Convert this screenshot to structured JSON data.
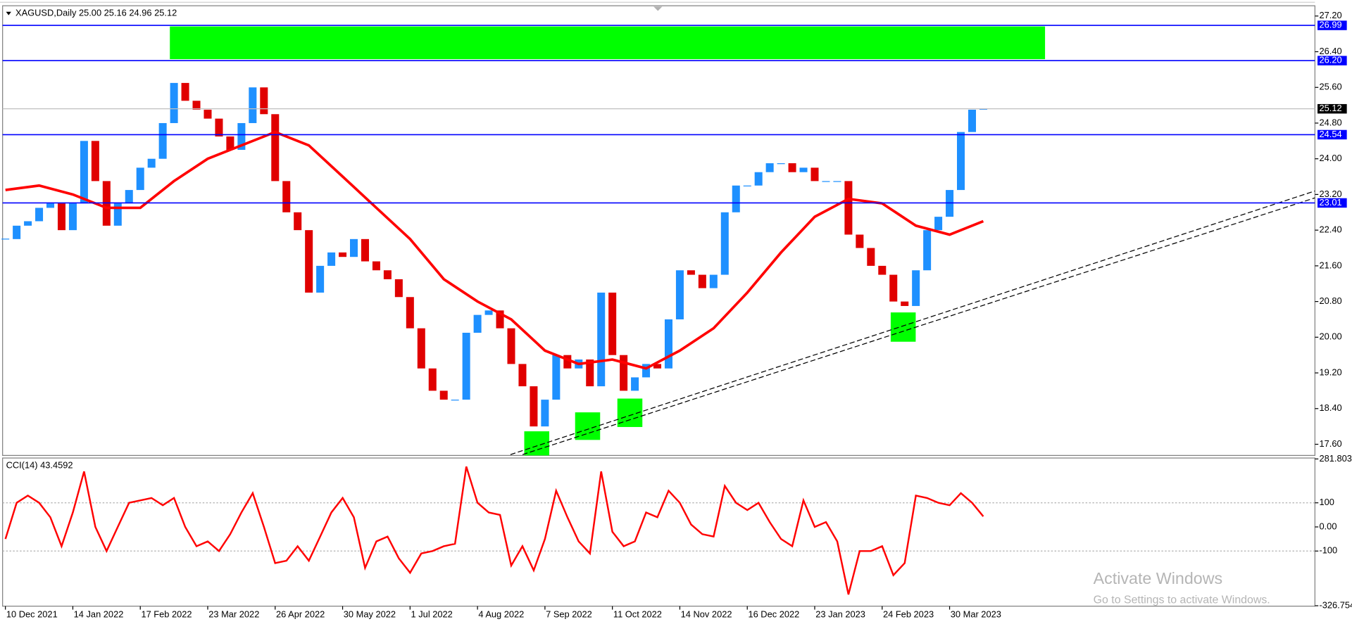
{
  "chart_data": [
    {
      "type": "candlestick",
      "title": "XAGUSD,Daily  25.00 25.16 24.96 25.12",
      "xlim": [
        -1,
        466
      ],
      "ylim": [
        17.35,
        27.43
      ],
      "yticks": [
        {
          "value": 27.2,
          "label": "27.20"
        },
        {
          "value": 26.4,
          "label": "26.40"
        },
        {
          "value": 25.6,
          "label": "25.60"
        },
        {
          "value": 24.8,
          "label": "24.80"
        },
        {
          "value": 24,
          "label": "24.00"
        },
        {
          "value": 23.2,
          "label": "23.20"
        },
        {
          "value": 22.4,
          "label": "22.40"
        },
        {
          "value": 21.6,
          "label": "21.60"
        },
        {
          "value": 20.8,
          "label": "20.80"
        },
        {
          "value": 20,
          "label": "20.00"
        },
        {
          "value": 19.2,
          "label": "19.20"
        },
        {
          "value": 18.4,
          "label": "18.40"
        },
        {
          "value": 17.6,
          "label": "17.60"
        }
      ],
      "levels": [
        26.99,
        {
          "value": 26.2,
          "label": "26.20"
        },
        24.54,
        23.01
      ],
      "level_color": "#0000ff",
      "current_price": 25.12,
      "current_color": "#c0c0c0",
      "series": [
        {
          "color_up": "#1e90ff",
          "color_down": "#e00000",
          "x": [
            0,
            4,
            8,
            12,
            16,
            20,
            24,
            28,
            32,
            36,
            40,
            44,
            48,
            52,
            56,
            60,
            64,
            68,
            72,
            76,
            80,
            84,
            88,
            92,
            96,
            100,
            104,
            108,
            112,
            116,
            120,
            124,
            128,
            132,
            136,
            140,
            144,
            148,
            152,
            156,
            160,
            164,
            168,
            172,
            176,
            180,
            184,
            188,
            192,
            196,
            200,
            204,
            208,
            212,
            216,
            220,
            224,
            228,
            232,
            236,
            240,
            244,
            248,
            252,
            256,
            260,
            264,
            268,
            272,
            276,
            280,
            284,
            288,
            292,
            296,
            300,
            304,
            308,
            312,
            316,
            320,
            324,
            328,
            332,
            336,
            340,
            344,
            348
          ],
          "values": [
            22.2,
            22.5,
            22.6,
            22.9,
            23.0,
            22.4,
            23.0,
            24.4,
            23.5,
            22.5,
            23.0,
            23.3,
            23.8,
            24.0,
            24.8,
            25.7,
            25.3,
            25.1,
            24.9,
            24.5,
            24.2,
            24.8,
            25.6,
            25.0,
            23.5,
            22.8,
            22.4,
            21.0,
            21.6,
            21.9,
            21.8,
            22.2,
            21.7,
            21.5,
            21.3,
            20.9,
            20.2,
            19.3,
            18.8,
            18.6,
            18.6,
            20.1,
            20.5,
            20.6,
            20.2,
            19.4,
            18.9,
            18.0,
            18.6,
            19.6,
            19.3,
            19.5,
            18.9,
            21.0,
            19.6,
            18.8,
            19.1,
            19.4,
            19.3,
            20.4,
            21.5,
            21.4,
            21.1,
            21.4,
            22.8,
            23.4,
            23.4,
            23.7,
            23.9,
            23.9,
            23.7,
            23.8,
            23.5,
            23.5,
            23.5,
            22.3,
            22.0,
            21.6,
            21.4,
            20.8,
            20.7,
            21.5,
            22.4,
            22.7,
            23.3,
            24.6,
            25.1,
            25.12
          ]
        },
        {
          "color": "#ff0000",
          "x": [
            0,
            12,
            24,
            36,
            48,
            60,
            72,
            84,
            96,
            108,
            120,
            132,
            144,
            156,
            168,
            180,
            192,
            204,
            216,
            228,
            240,
            252,
            264,
            276,
            288,
            300,
            312,
            324,
            336,
            348
          ],
          "values": [
            23.3,
            23.4,
            23.2,
            22.9,
            22.9,
            23.5,
            24.0,
            24.3,
            24.6,
            24.3,
            23.6,
            22.9,
            22.2,
            21.3,
            20.8,
            20.4,
            19.7,
            19.4,
            19.5,
            19.3,
            19.7,
            20.2,
            21.0,
            21.9,
            22.7,
            23.1,
            23.0,
            22.5,
            22.3,
            22.6
          ]
        }
      ]
    },
    {
      "type": "line",
      "title": "CCI(14) 43.4592",
      "ylim": [
        -328.6,
        285.7
      ],
      "yticks": [
        281.803,
        100,
        {
          "value": 0,
          "label": "0.00"
        },
        -100,
        -326.754
      ],
      "levels": [
        100,
        -100
      ],
      "level_color": "#b0b0b0",
      "xticks": [
        {
          "value": 0,
          "label": "10 Dec 2021"
        },
        {
          "value": 24,
          "label": "14 Jan 2022"
        },
        {
          "value": 48,
          "label": "17 Feb 2022"
        },
        {
          "value": 72,
          "label": "23 Mar 2022"
        },
        {
          "value": 96,
          "label": "26 Apr 2022"
        },
        {
          "value": 120,
          "label": "30 May 2022"
        },
        {
          "value": 144,
          "label": "1 Jul 2022"
        },
        {
          "value": 168,
          "label": "4 Aug 2022"
        },
        {
          "value": 192,
          "label": "7 Sep 2022"
        },
        {
          "value": 216,
          "label": "11 Oct 2022"
        },
        {
          "value": 240,
          "label": "14 Nov 2022"
        },
        {
          "value": 264,
          "label": "16 Dec 2022"
        },
        {
          "value": 288,
          "label": "23 Jan 2023"
        },
        {
          "value": 312,
          "label": "24 Feb 2023"
        },
        {
          "value": 336,
          "label": "30 Mar 2023"
        }
      ],
      "series": [
        {
          "color": "#ff0000",
          "x": [
            0,
            4,
            8,
            12,
            16,
            20,
            24,
            28,
            32,
            36,
            40,
            44,
            48,
            52,
            56,
            60,
            64,
            68,
            72,
            76,
            80,
            84,
            88,
            92,
            96,
            100,
            104,
            108,
            112,
            116,
            120,
            124,
            128,
            132,
            136,
            140,
            144,
            148,
            152,
            156,
            160,
            164,
            168,
            172,
            176,
            180,
            184,
            188,
            192,
            196,
            200,
            204,
            208,
            212,
            216,
            220,
            224,
            228,
            232,
            236,
            240,
            244,
            248,
            252,
            256,
            260,
            264,
            268,
            272,
            276,
            280,
            284,
            288,
            292,
            296,
            300,
            304,
            308,
            312,
            316,
            320,
            324,
            328,
            332,
            336,
            340,
            344,
            348
          ],
          "values": [
            -50,
            100,
            130,
            100,
            40,
            -80,
            60,
            230,
            0,
            -100,
            0,
            100,
            110,
            120,
            90,
            120,
            0,
            -80,
            -60,
            -100,
            -30,
            60,
            140,
            0,
            -150,
            -140,
            -80,
            -140,
            -40,
            60,
            120,
            40,
            -170,
            -60,
            -40,
            -130,
            -190,
            -110,
            -100,
            -80,
            -70,
            250,
            100,
            60,
            50,
            -160,
            -80,
            -180,
            -50,
            150,
            40,
            -60,
            -110,
            230,
            -20,
            -80,
            -60,
            60,
            40,
            150,
            100,
            10,
            -30,
            -40,
            170,
            100,
            70,
            100,
            20,
            -50,
            -80,
            110,
            0,
            20,
            -60,
            -280,
            -100,
            -100,
            -80,
            -200,
            -150,
            130,
            120,
            100,
            90,
            140,
            100,
            43.4592
          ]
        }
      ]
    }
  ],
  "watermark": {
    "title": "Activate Windows",
    "subtitle": "Go to Settings to activate Windows."
  }
}
